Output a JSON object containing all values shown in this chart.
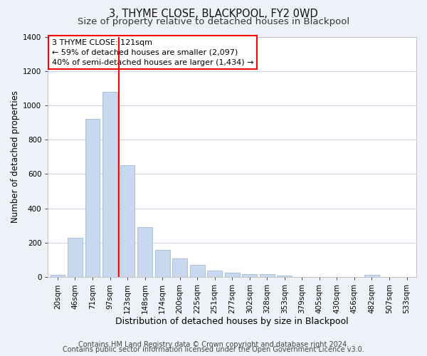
{
  "title": "3, THYME CLOSE, BLACKPOOL, FY2 0WD",
  "subtitle": "Size of property relative to detached houses in Blackpool",
  "xlabel": "Distribution of detached houses by size in Blackpool",
  "ylabel": "Number of detached properties",
  "bar_labels": [
    "20sqm",
    "46sqm",
    "71sqm",
    "97sqm",
    "123sqm",
    "148sqm",
    "174sqm",
    "200sqm",
    "225sqm",
    "251sqm",
    "277sqm",
    "302sqm",
    "328sqm",
    "353sqm",
    "379sqm",
    "405sqm",
    "430sqm",
    "456sqm",
    "482sqm",
    "507sqm",
    "533sqm"
  ],
  "bar_values": [
    15,
    228,
    920,
    1080,
    650,
    290,
    158,
    107,
    72,
    40,
    25,
    18,
    18,
    10,
    0,
    0,
    0,
    0,
    12,
    0,
    0
  ],
  "bar_color": "#c8d9ef",
  "bar_edgecolor": "#a0bcd8",
  "vline_x_index": 4,
  "vline_color": "red",
  "annotation_box_text": "3 THYME CLOSE: 121sqm\n← 59% of detached houses are smaller (2,097)\n40% of semi-detached houses are larger (1,434) →",
  "annotation_box_color": "white",
  "annotation_box_edgecolor": "red",
  "ylim": [
    0,
    1400
  ],
  "yticks": [
    0,
    200,
    400,
    600,
    800,
    1000,
    1200,
    1400
  ],
  "footer_line1": "Contains HM Land Registry data © Crown copyright and database right 2024.",
  "footer_line2": "Contains public sector information licensed under the Open Government Licence v3.0.",
  "bg_color": "#eef2f8",
  "plot_bg_color": "#ffffff",
  "grid_color": "#ccd8ea",
  "title_fontsize": 10.5,
  "subtitle_fontsize": 9.5,
  "xlabel_fontsize": 9,
  "ylabel_fontsize": 8.5,
  "footer_fontsize": 7,
  "annotation_fontsize": 8,
  "tick_fontsize": 7.5
}
